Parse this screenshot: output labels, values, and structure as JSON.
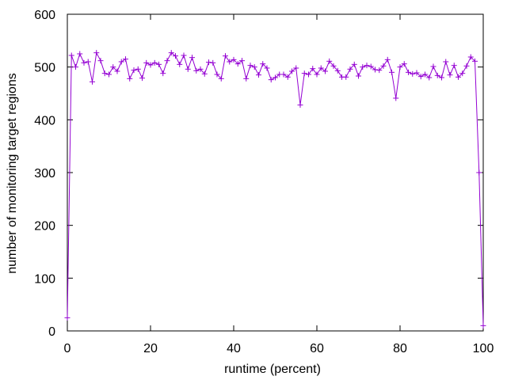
{
  "chart_data": {
    "type": "line",
    "xlabel": "runtime (percent)",
    "ylabel": "number of monitoring target regions",
    "xlim": [
      0,
      100
    ],
    "ylim": [
      0,
      600
    ],
    "xticks": [
      "0",
      "20",
      "40",
      "60",
      "80",
      "100"
    ],
    "yticks": [
      "0",
      "100",
      "200",
      "300",
      "400",
      "500",
      "600"
    ],
    "grid": false,
    "series": [
      {
        "color": "#9400d3",
        "marker": "plus",
        "x": [
          0,
          1,
          2,
          3,
          4,
          5,
          6,
          7,
          8,
          9,
          10,
          11,
          12,
          13,
          14,
          15,
          16,
          17,
          18,
          19,
          20,
          21,
          22,
          23,
          24,
          25,
          26,
          27,
          28,
          29,
          30,
          31,
          32,
          33,
          34,
          35,
          36,
          37,
          38,
          39,
          40,
          41,
          42,
          43,
          44,
          45,
          46,
          47,
          48,
          49,
          50,
          51,
          52,
          53,
          54,
          55,
          56,
          57,
          58,
          59,
          60,
          61,
          62,
          63,
          64,
          65,
          66,
          67,
          68,
          69,
          70,
          71,
          72,
          73,
          74,
          75,
          76,
          77,
          78,
          79,
          80,
          81,
          82,
          83,
          84,
          85,
          86,
          87,
          88,
          89,
          90,
          91,
          92,
          93,
          94,
          95,
          96,
          97,
          98,
          99,
          100
        ],
        "y": [
          25,
          522,
          500,
          525,
          508,
          510,
          472,
          527,
          512,
          488,
          486,
          500,
          492,
          510,
          515,
          478,
          494,
          496,
          479,
          508,
          504,
          508,
          505,
          488,
          512,
          527,
          521,
          505,
          522,
          496,
          518,
          493,
          496,
          487,
          509,
          508,
          486,
          478,
          521,
          510,
          514,
          506,
          512,
          478,
          503,
          500,
          485,
          506,
          498,
          476,
          480,
          486,
          486,
          481,
          492,
          498,
          428,
          488,
          486,
          497,
          486,
          498,
          492,
          511,
          502,
          493,
          481,
          481,
          496,
          505,
          483,
          500,
          503,
          501,
          495,
          494,
          502,
          514,
          490,
          441,
          500,
          506,
          490,
          487,
          489,
          482,
          486,
          480,
          501,
          484,
          480,
          510,
          485,
          503,
          481,
          488,
          502,
          519,
          511,
          300,
          10
        ]
      }
    ]
  }
}
